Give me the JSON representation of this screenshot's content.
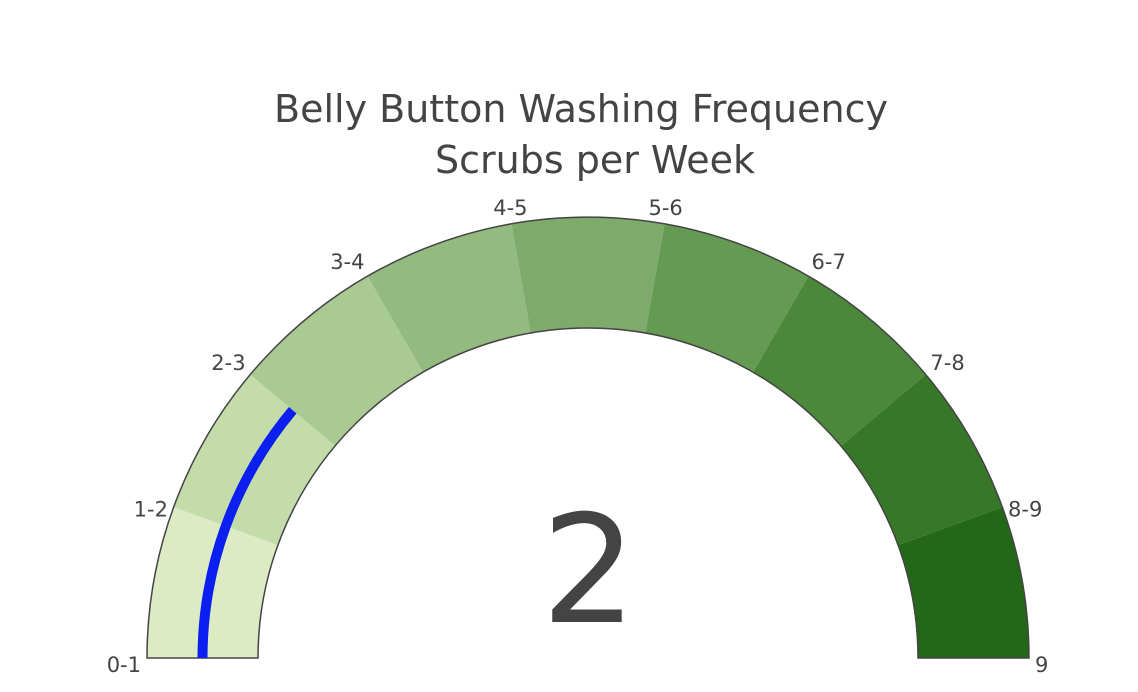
{
  "chart_data": {
    "type": "gauge",
    "title": [
      "Belly Button Washing Frequency",
      "Scrubs per Week"
    ],
    "value": 2,
    "range": [
      0,
      9
    ],
    "tick_labels": [
      "0-1",
      "1-2",
      "2-3",
      "3-4",
      "4-5",
      "5-6",
      "6-7",
      "7-8",
      "8-9",
      "9"
    ],
    "steps": [
      {
        "range": [
          0,
          1
        ],
        "color": "#dcebc4"
      },
      {
        "range": [
          1,
          2
        ],
        "color": "#c4dcaa"
      },
      {
        "range": [
          2,
          3
        ],
        "color": "#a9cb93"
      },
      {
        "range": [
          3,
          4
        ],
        "color": "#93ba7f"
      },
      {
        "range": [
          4,
          5
        ],
        "color": "#7eaa6b"
      },
      {
        "range": [
          5,
          6
        ],
        "color": "#659a53"
      },
      {
        "range": [
          6,
          7
        ],
        "color": "#4b883a"
      },
      {
        "range": [
          7,
          8
        ],
        "color": "#367827"
      },
      {
        "range": [
          8,
          9
        ],
        "color": "#226817"
      }
    ],
    "bar_color": "#0a1ff0",
    "border_color": "#444444"
  }
}
